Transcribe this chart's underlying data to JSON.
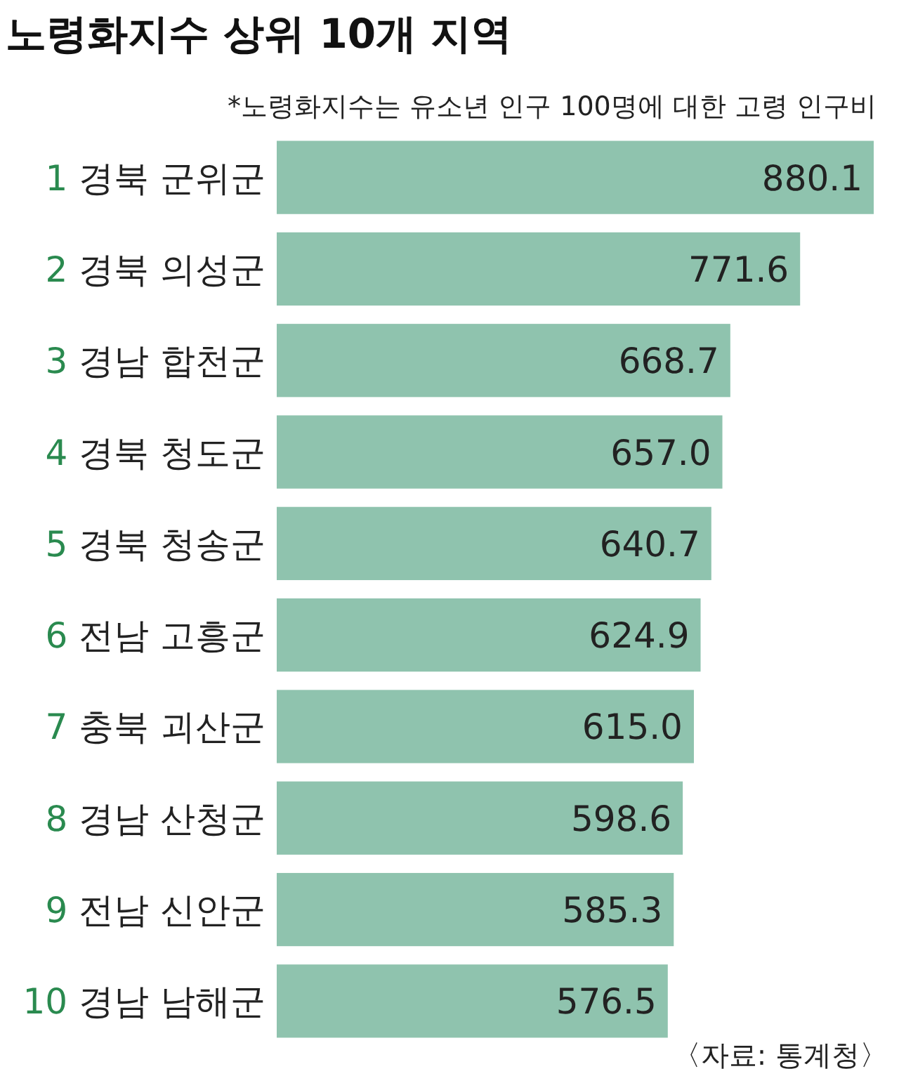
{
  "chart_data": {
    "type": "bar",
    "orientation": "horizontal",
    "title": "노령화지수 상위 10개 지역",
    "subtitle": "*노령화지수는 유소년 인구 100명에 대한 고령 인구비",
    "categories": [
      "1 경북 군위군",
      "2 경북 의성군",
      "3 경남 합천군",
      "4 경북 청도군",
      "5 경북 청송군",
      "6 전남 고흥군",
      "7 충북 괴산군",
      "8 경남 산청군",
      "9 전남 신안군",
      "10 경남 남해군"
    ],
    "values": [
      880.1,
      771.6,
      668.7,
      657.0,
      640.7,
      624.9,
      615.0,
      598.6,
      585.3,
      576.5
    ],
    "value_labels": [
      "880.1",
      "771.6",
      "668.7",
      "657.0",
      "640.7",
      "624.9",
      "615.0",
      "598.6",
      "585.3",
      "576.5"
    ],
    "color": "#8fc3ae",
    "annotations": [
      "〈자료: 통계청〉"
    ]
  }
}
